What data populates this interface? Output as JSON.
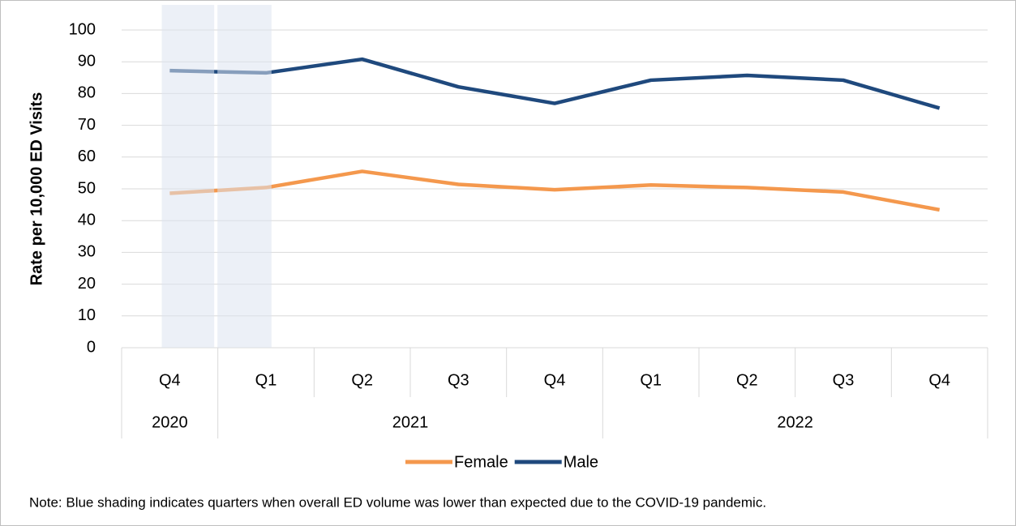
{
  "chart_data": {
    "type": "line",
    "groups": [
      {
        "name": "2020",
        "quarters": [
          {
            "label": "Q4",
            "shaded": true
          }
        ]
      },
      {
        "name": "2021",
        "quarters": [
          {
            "label": "Q1",
            "shaded": true
          },
          {
            "label": "Q2",
            "shaded": false
          },
          {
            "label": "Q3",
            "shaded": false
          },
          {
            "label": "Q4",
            "shaded": false
          }
        ]
      },
      {
        "name": "2022",
        "quarters": [
          {
            "label": "Q1",
            "shaded": false
          },
          {
            "label": "Q2",
            "shaded": false
          },
          {
            "label": "Q3",
            "shaded": false
          },
          {
            "label": "Q4",
            "shaded": false
          }
        ]
      }
    ],
    "series": [
      {
        "name": "Female",
        "color": "#f4984d",
        "values": [
          48.6,
          50.4,
          55.5,
          51.4,
          49.7,
          51.2,
          50.4,
          49.0,
          43.4
        ]
      },
      {
        "name": "Male",
        "color": "#1f497d",
        "values": [
          87.2,
          86.5,
          90.8,
          82.1,
          76.9,
          84.2,
          85.7,
          84.2,
          75.4
        ]
      }
    ],
    "y_label": "Rate per 10,000 ED Visits",
    "ylim": [
      0,
      100
    ],
    "yticks": [
      0,
      10,
      20,
      30,
      40,
      50,
      60,
      70,
      80,
      90,
      100
    ],
    "grid": true,
    "shade_color": "#dce4f0",
    "note": "Note: Blue shading indicates quarters when overall ED volume was lower than expected due to the COVID-19 pandemic."
  }
}
